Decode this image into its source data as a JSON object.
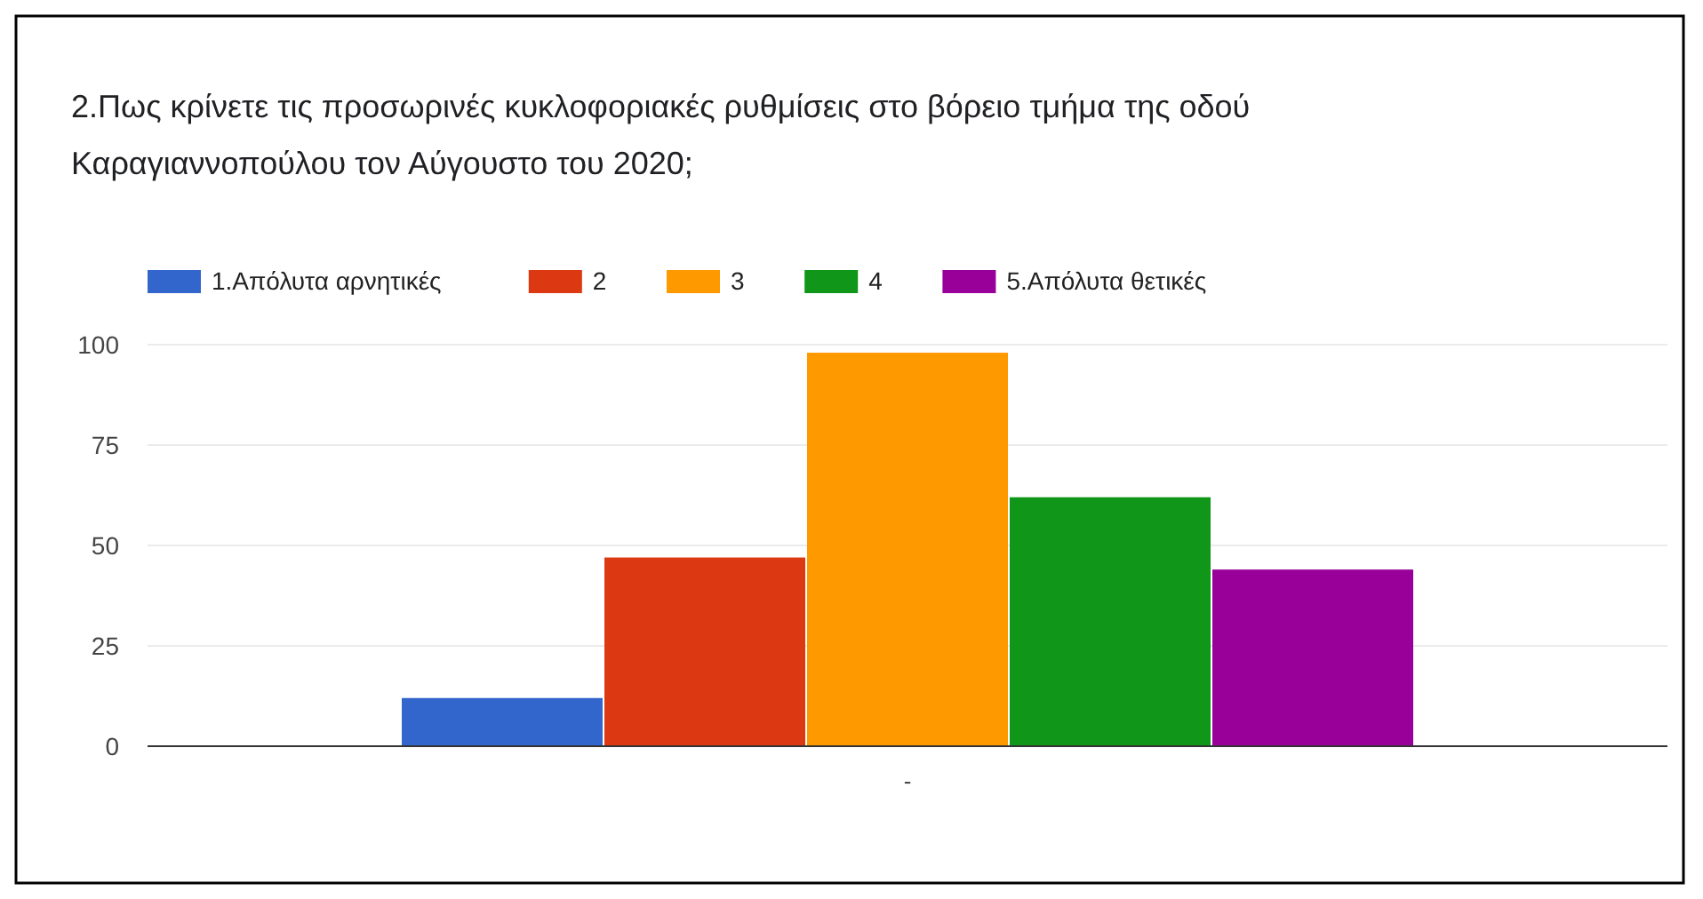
{
  "chart_data": {
    "type": "bar",
    "title": "2.Πως κρίνετε τις προσωρινές κυκλοφοριακές ρυθμίσεις στο βόρειο τμήμα της οδού Καραγιαννοπούλου τον Αύγουστο του 2020;",
    "categories": [
      "-"
    ],
    "series": [
      {
        "name": "1.Απόλυτα αρνητικές",
        "color": "#3366cc",
        "values": [
          12
        ]
      },
      {
        "name": "2",
        "color": "#dc3912",
        "values": [
          47
        ]
      },
      {
        "name": "3",
        "color": "#ff9900",
        "values": [
          98
        ]
      },
      {
        "name": "4",
        "color": "#109618",
        "values": [
          62
        ]
      },
      {
        "name": "5.Απόλυτα θετικές",
        "color": "#990099",
        "values": [
          44
        ]
      }
    ],
    "ylim": [
      0,
      100
    ],
    "yticks": [
      0,
      25,
      50,
      75,
      100
    ],
    "grid": "y",
    "legend": "top"
  }
}
